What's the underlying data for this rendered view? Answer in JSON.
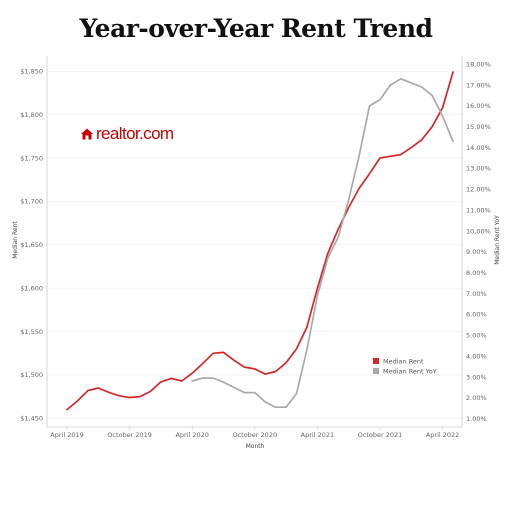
{
  "title": "Year-over-Year Rent Trend",
  "logo": {
    "text": "realtor.com",
    "icon": "house-icon"
  },
  "chart_data": {
    "type": "line",
    "xlabel": "Month",
    "ylabel_left": "Median Rent",
    "ylabel_right": "Median Rent YoY",
    "x_ticks": [
      "April 2019",
      "October 2019",
      "April 2020",
      "October 2020",
      "April 2021",
      "October 2021",
      "April 2022"
    ],
    "y_left_ticks": [
      "$1,450",
      "$1,500",
      "$1,550",
      "$1,600",
      "$1,650",
      "$1,700",
      "$1,750",
      "$1,800",
      "$1,850"
    ],
    "y_right_ticks": [
      "1.00%",
      "2.00%",
      "3.00%",
      "4.00%",
      "5.00%",
      "6.00%",
      "7.00%",
      "8.00%",
      "9.00%",
      "10.00%",
      "11.00%",
      "12.00%",
      "13.00%",
      "14.00%",
      "15.00%",
      "16.00%",
      "17.00%",
      "18.00%"
    ],
    "y_left_range": [
      1440,
      1863
    ],
    "y_right_range": [
      0.6,
      18.2
    ],
    "x_months": [
      "2019-04",
      "2019-05",
      "2019-06",
      "2019-07",
      "2019-08",
      "2019-09",
      "2019-10",
      "2019-11",
      "2019-12",
      "2020-01",
      "2020-02",
      "2020-03",
      "2020-04",
      "2020-05",
      "2020-06",
      "2020-07",
      "2020-08",
      "2020-09",
      "2020-10",
      "2020-11",
      "2020-12",
      "2021-01",
      "2021-02",
      "2021-03",
      "2021-04",
      "2021-05",
      "2021-06",
      "2021-07",
      "2021-08",
      "2021-09",
      "2021-10",
      "2021-11",
      "2021-12",
      "2022-01",
      "2022-02",
      "2022-03",
      "2022-04",
      "2022-05"
    ],
    "series": [
      {
        "name": "Median Rent",
        "axis": "left",
        "color": "#d62728",
        "values": [
          1460,
          1470,
          1482,
          1485,
          1480,
          1476,
          1474,
          1475,
          1481,
          1492,
          1496,
          1493,
          1502,
          1513,
          1525,
          1526,
          1517,
          1509,
          1507,
          1501,
          1504,
          1514,
          1530,
          1555,
          1600,
          1640,
          1668,
          1693,
          1715,
          1732,
          1750,
          1752,
          1754,
          1762,
          1771,
          1786,
          1808,
          1849
        ]
      },
      {
        "name": "Median Rent YoY",
        "axis": "right",
        "color": "#aaaaaa",
        "values": [
          null,
          null,
          null,
          null,
          null,
          null,
          null,
          null,
          null,
          null,
          null,
          null,
          2.8,
          2.95,
          2.95,
          2.75,
          2.5,
          2.25,
          2.25,
          1.8,
          1.55,
          1.55,
          2.2,
          4.3,
          6.9,
          8.7,
          9.7,
          11.5,
          13.6,
          16.0,
          16.3,
          17.0,
          17.3,
          17.1,
          16.9,
          16.5,
          15.5,
          14.3
        ]
      }
    ],
    "legend": {
      "placement": "bottom-right",
      "entries": [
        "Median Rent",
        "Median Rent YoY"
      ]
    },
    "grid": true
  }
}
